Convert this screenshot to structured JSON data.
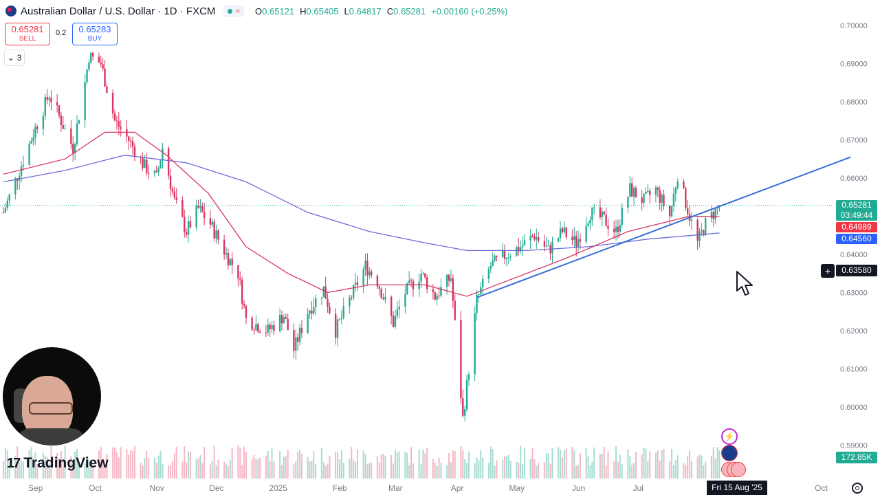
{
  "symbol": {
    "title": "Australian Dollar / U.S. Dollar · 1D · FXCM",
    "ohlc": [
      {
        "label": "O",
        "value": "0.65121"
      },
      {
        "label": "H",
        "value": "0.65405"
      },
      {
        "label": "L",
        "value": "0.64817"
      },
      {
        "label": "C",
        "value": "0.65281"
      },
      {
        "label": "",
        "value": "+0.00160 (+0.25%)"
      }
    ]
  },
  "trade": {
    "sell_price": "0.65281",
    "sell_label": "SELL",
    "spread": "0.2",
    "buy_price": "0.65283",
    "buy_label": "BUY",
    "indicator_count": "3"
  },
  "labels": {
    "last_price": "0.65281",
    "countdown": "03:49:44",
    "ma_fast": "0.64989",
    "ma_slow": "0.64560",
    "cursor_price": "0.63580",
    "volume": "172.85K",
    "cursor_date": "Fri 15 Aug '25"
  },
  "brand": {
    "name": "TradingView",
    "mark": "17"
  },
  "colors": {
    "up": "#22ab94",
    "down": "#d8345f",
    "ma_fast": "#d8345f",
    "ma_slow": "#6b6bd6",
    "trendline": "#3b6fd6"
  },
  "chart_data": {
    "type": "candlestick",
    "y_axis": {
      "min": 0.585,
      "max": 0.7,
      "ticks": [
        "0.70000",
        "0.69000",
        "0.68000",
        "0.67000",
        "0.66000",
        "0.65000",
        "0.64000",
        "0.63000",
        "0.62000",
        "0.61000",
        "0.60000",
        "0.59000"
      ]
    },
    "x_axis": {
      "ticks": [
        "Sep",
        "Oct",
        "Nov",
        "Dec",
        "2025",
        "Feb",
        "Mar",
        "Apr",
        "May",
        "Jun",
        "Jul",
        "Oct"
      ]
    },
    "close_path": [
      [
        "2024-08-20",
        0.651
      ],
      [
        "2024-08-28",
        0.662
      ],
      [
        "2024-09-05",
        0.673
      ],
      [
        "2024-09-12",
        0.682
      ],
      [
        "2024-09-18",
        0.675
      ],
      [
        "2024-09-24",
        0.668
      ],
      [
        "2024-09-30",
        0.685
      ],
      [
        "2024-10-02",
        0.692
      ],
      [
        "2024-10-08",
        0.69
      ],
      [
        "2024-10-15",
        0.675
      ],
      [
        "2024-10-22",
        0.67
      ],
      [
        "2024-10-30",
        0.663
      ],
      [
        "2024-11-05",
        0.66
      ],
      [
        "2024-11-08",
        0.668
      ],
      [
        "2024-11-14",
        0.654
      ],
      [
        "2024-11-20",
        0.646
      ],
      [
        "2024-11-26",
        0.652
      ],
      [
        "2024-12-02",
        0.648
      ],
      [
        "2024-12-10",
        0.64
      ],
      [
        "2024-12-16",
        0.635
      ],
      [
        "2024-12-20",
        0.623
      ],
      [
        "2024-12-31",
        0.62
      ],
      [
        "2025-01-08",
        0.624
      ],
      [
        "2025-01-13",
        0.615
      ],
      [
        "2025-01-20",
        0.625
      ],
      [
        "2025-01-28",
        0.631
      ],
      [
        "2025-02-03",
        0.62
      ],
      [
        "2025-02-10",
        0.628
      ],
      [
        "2025-02-18",
        0.637
      ],
      [
        "2025-02-24",
        0.633
      ],
      [
        "2025-03-04",
        0.622
      ],
      [
        "2025-03-10",
        0.63
      ],
      [
        "2025-03-18",
        0.635
      ],
      [
        "2025-03-25",
        0.629
      ],
      [
        "2025-04-02",
        0.634
      ],
      [
        "2025-04-08",
        0.597
      ],
      [
        "2025-04-11",
        0.61
      ],
      [
        "2025-04-15",
        0.628
      ],
      [
        "2025-04-22",
        0.637
      ],
      [
        "2025-04-30",
        0.64
      ],
      [
        "2025-05-07",
        0.642
      ],
      [
        "2025-05-14",
        0.645
      ],
      [
        "2025-05-21",
        0.641
      ],
      [
        "2025-05-28",
        0.646
      ],
      [
        "2025-06-04",
        0.643
      ],
      [
        "2025-06-11",
        0.651
      ],
      [
        "2025-06-18",
        0.649
      ],
      [
        "2025-06-24",
        0.646
      ],
      [
        "2025-07-01",
        0.657
      ],
      [
        "2025-07-08",
        0.654
      ],
      [
        "2025-07-14",
        0.657
      ],
      [
        "2025-07-21",
        0.65
      ],
      [
        "2025-07-25",
        0.661
      ],
      [
        "2025-07-31",
        0.65
      ],
      [
        "2025-08-04",
        0.643
      ],
      [
        "2025-08-08",
        0.648
      ],
      [
        "2025-08-15",
        0.6528
      ]
    ],
    "ma_fast_path": [
      [
        "2024-08-20",
        0.661
      ],
      [
        "2024-09-20",
        0.665
      ],
      [
        "2024-10-10",
        0.672
      ],
      [
        "2024-10-25",
        0.672
      ],
      [
        "2024-11-10",
        0.666
      ],
      [
        "2024-12-01",
        0.656
      ],
      [
        "2024-12-20",
        0.642
      ],
      [
        "2025-01-10",
        0.635
      ],
      [
        "2025-01-30",
        0.63
      ],
      [
        "2025-02-20",
        0.632
      ],
      [
        "2025-03-20",
        0.632
      ],
      [
        "2025-04-10",
        0.629
      ],
      [
        "2025-04-30",
        0.633
      ],
      [
        "2025-05-30",
        0.639
      ],
      [
        "2025-06-30",
        0.646
      ],
      [
        "2025-07-31",
        0.65
      ],
      [
        "2025-08-15",
        0.6499
      ]
    ],
    "ma_slow_path": [
      [
        "2024-08-20",
        0.659
      ],
      [
        "2024-09-20",
        0.662
      ],
      [
        "2024-10-20",
        0.666
      ],
      [
        "2024-11-20",
        0.664
      ],
      [
        "2024-12-20",
        0.659
      ],
      [
        "2025-01-20",
        0.651
      ],
      [
        "2025-02-20",
        0.646
      ],
      [
        "2025-03-20",
        0.643
      ],
      [
        "2025-04-10",
        0.641
      ],
      [
        "2025-05-10",
        0.641
      ],
      [
        "2025-06-10",
        0.642
      ],
      [
        "2025-07-10",
        0.644
      ],
      [
        "2025-08-15",
        0.6456
      ]
    ],
    "trendline": {
      "from": [
        "2025-04-15",
        0.6287
      ],
      "to": [
        "2025-10-20",
        0.6655
      ]
    }
  }
}
